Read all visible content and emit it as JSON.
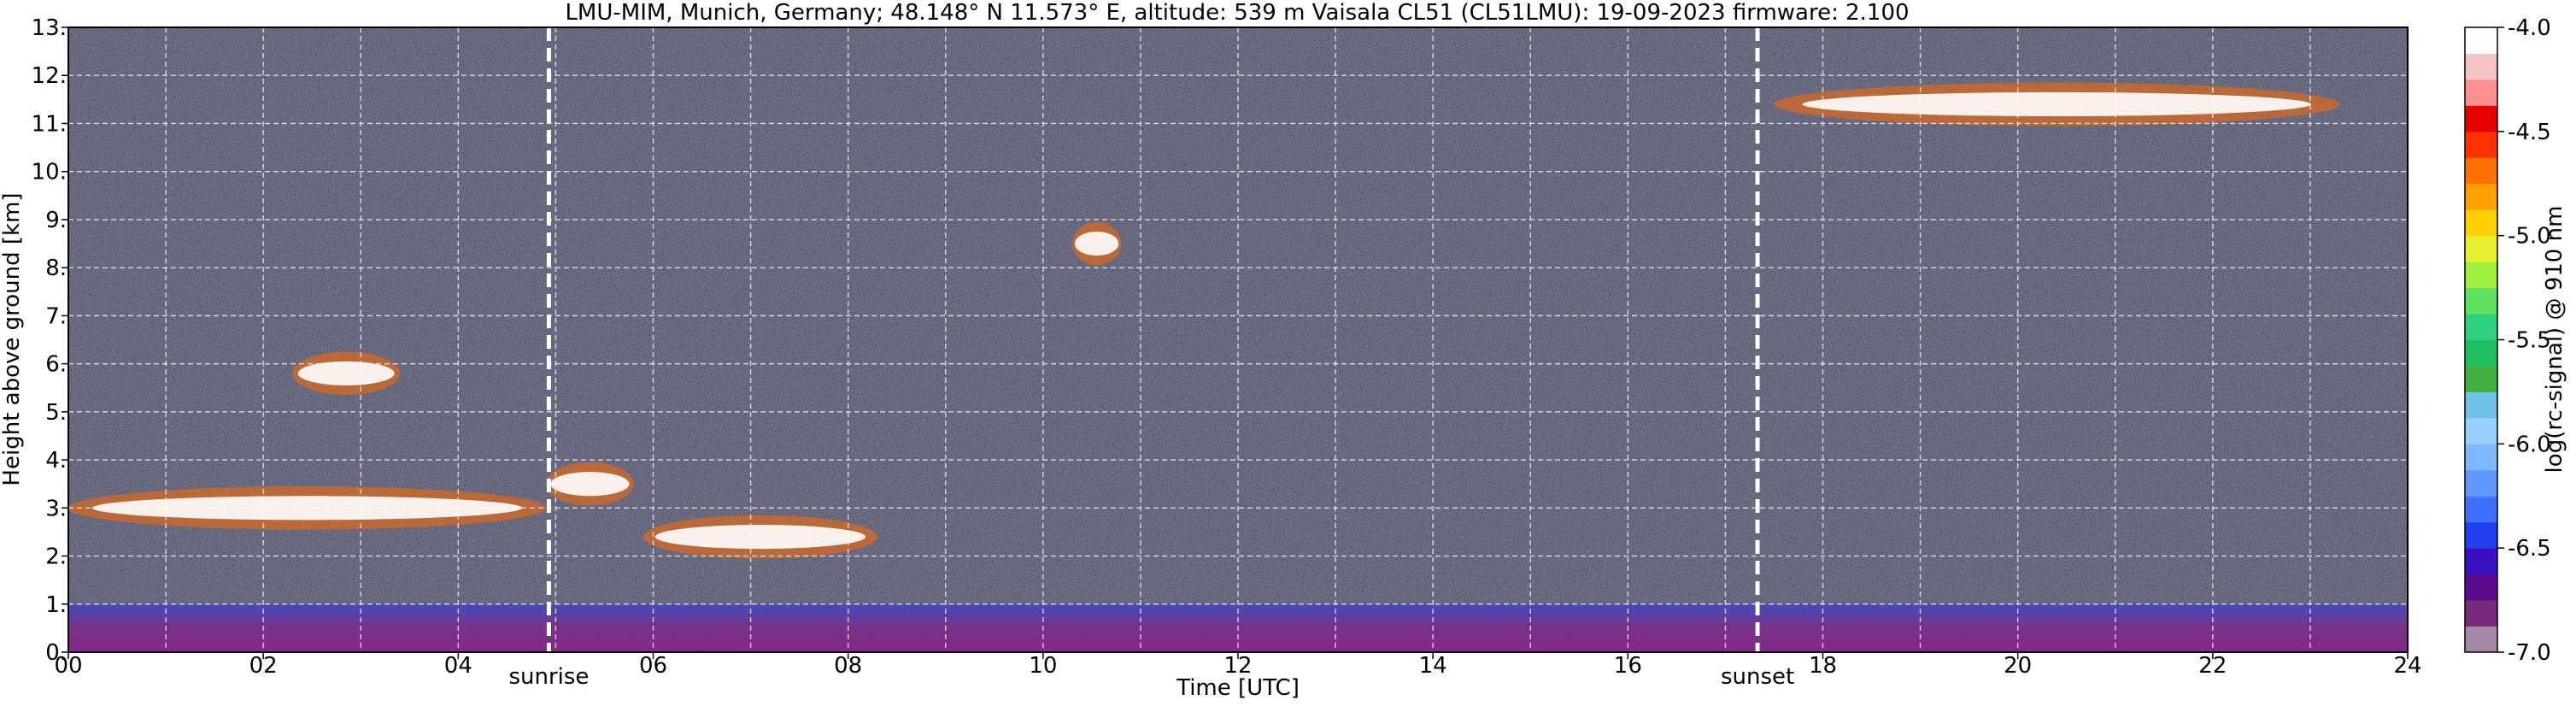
{
  "chart_data": {
    "type": "heatmap",
    "title": "LMU-MIM, Munich, Germany; 48.148° N 11.573° E, altitude: 539 m    Vaisala CL51 (CL51LMU): 19-09-2023    firmware: 2.100",
    "xlabel": "Time [UTC]",
    "ylabel": "Height above ground [km]",
    "xlim": [
      0,
      24
    ],
    "ylim": [
      0,
      13
    ],
    "x_ticks": [
      "00",
      "02",
      "04",
      "06",
      "08",
      "10",
      "12",
      "14",
      "16",
      "18",
      "20",
      "22",
      "24"
    ],
    "y_ticks": [
      "0.",
      "1.",
      "2.",
      "3.",
      "4.",
      "5.",
      "6.",
      "7.",
      "8.",
      "9.",
      "10.",
      "11.",
      "12.",
      "13."
    ],
    "grid": true,
    "colorbar": {
      "label": "log(rc-signal) @ 910 nm",
      "range": [
        -7.0,
        -4.0
      ],
      "ticks": [
        "-4.0",
        "-4.5",
        "-5.0",
        "-5.5",
        "-6.0",
        "-6.5",
        "-7.0"
      ],
      "colors": [
        "#a58aa5",
        "#7a2a7a",
        "#5a0a8a",
        "#3a10c0",
        "#2040f0",
        "#4070ff",
        "#6098ff",
        "#80b8ff",
        "#9ad0ff",
        "#70c0e8",
        "#40b040",
        "#20c060",
        "#30d080",
        "#60e060",
        "#a0f040",
        "#e8f030",
        "#ffd000",
        "#ffa000",
        "#ff7000",
        "#ff3000",
        "#e80000",
        "#ff9090",
        "#f4c4c4",
        "#ffffff"
      ]
    },
    "annotations": [
      {
        "label": "sunrise",
        "time": 4.93
      },
      {
        "label": "sunset",
        "time": 17.33
      }
    ],
    "features": [
      {
        "kind": "boundary-layer",
        "t0": 0,
        "t1": 24,
        "h0": 0.0,
        "h1": 1.0
      },
      {
        "kind": "cloud",
        "t0": 0.0,
        "t1": 4.9,
        "h": 3.0
      },
      {
        "kind": "cloud",
        "t0": 2.3,
        "t1": 3.4,
        "h": 5.8
      },
      {
        "kind": "cloud",
        "t0": 4.9,
        "t1": 5.8,
        "h": 3.5
      },
      {
        "kind": "cloud",
        "t0": 5.9,
        "t1": 8.3,
        "h": 2.4
      },
      {
        "kind": "cloud",
        "t0": 10.3,
        "t1": 10.8,
        "h": 8.5
      },
      {
        "kind": "cloud",
        "t0": 17.5,
        "t1": 23.3,
        "h": 11.4
      }
    ]
  }
}
